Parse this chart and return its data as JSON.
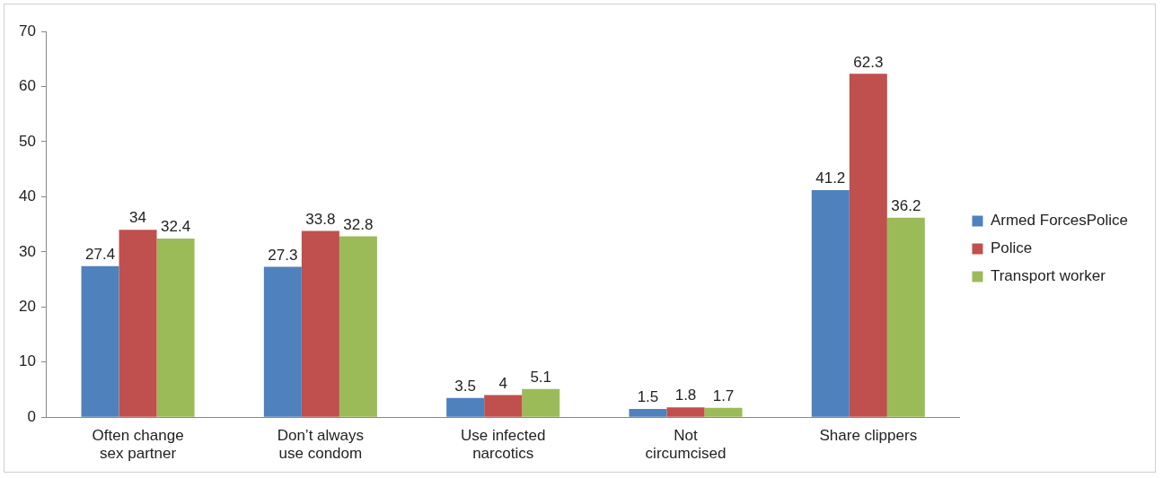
{
  "chart_data": {
    "type": "bar",
    "categories": [
      "Often change\nsex partner",
      "Don’t always\nuse condom",
      "Use infected\nnarcotics",
      "Not\ncircumcised",
      "Share clippers"
    ],
    "series": [
      {
        "name": "Armed ForcesPolice",
        "color": "#4f81bd",
        "values": [
          27.4,
          27.3,
          3.5,
          1.5,
          41.2
        ]
      },
      {
        "name": "Police",
        "color": "#c0504d",
        "values": [
          34,
          33.8,
          4,
          1.8,
          62.3
        ]
      },
      {
        "name": "Transport worker",
        "color": "#9bbb59",
        "values": [
          32.4,
          32.8,
          5.1,
          1.7,
          36.2
        ]
      }
    ],
    "ylim": [
      0,
      70
    ],
    "yticks": [
      0,
      10,
      20,
      30,
      40,
      50,
      60,
      70
    ],
    "grid": false,
    "legend": "right",
    "data_labels": true
  }
}
